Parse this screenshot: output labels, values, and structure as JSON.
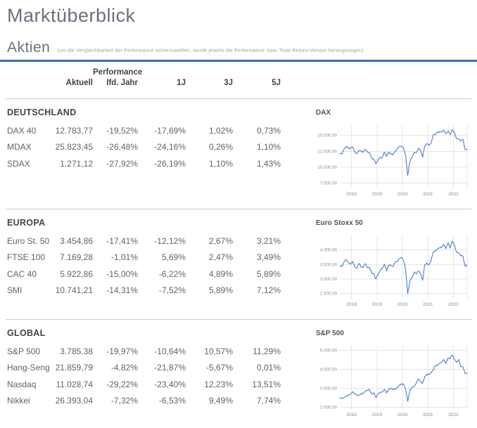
{
  "page": {
    "title": "Marktüberblick"
  },
  "section": {
    "title": "Aktien",
    "note": "(um die Vergleichbarkeit der Performance sicherzustellen, wurde jeweils die Performance- bzw. Total-Return-Version herangezogen)"
  },
  "table": {
    "group_header": "Performance",
    "columns": [
      "Aktuell",
      "lfd. Jahr",
      "1J",
      "3J",
      "5J"
    ],
    "groups": [
      {
        "name": "DEUTSCHLAND",
        "rows": [
          {
            "label": "DAX 40",
            "values": [
              "12.783,77",
              "-19,52%",
              "-17,69%",
              "1,02%",
              "0,73%"
            ]
          },
          {
            "label": "MDAX",
            "values": [
              "25.823,45",
              "-26,48%",
              "-24,16%",
              "0,26%",
              "1,10%"
            ]
          },
          {
            "label": "SDAX",
            "values": [
              "1.271,12",
              "-27,92%",
              "-26,19%",
              "1,10%",
              "1,43%"
            ]
          }
        ]
      },
      {
        "name": "EUROPA",
        "rows": [
          {
            "label": "Euro St. 50",
            "values": [
              "3.454,86",
              "-17,41%",
              "-12,12%",
              "2,67%",
              "3,21%"
            ]
          },
          {
            "label": "FTSE 100",
            "values": [
              "7.169,28",
              "-1,01%",
              "5,69%",
              "2,47%",
              "3,49%"
            ]
          },
          {
            "label": "CAC 40",
            "values": [
              "5.922,86",
              "-15,00%",
              "-6,22%",
              "4,89%",
              "5,89%"
            ]
          },
          {
            "label": "SMI",
            "values": [
              "10.741,21",
              "-14,31%",
              "-7,52%",
              "5,89%",
              "7,12%"
            ]
          }
        ]
      },
      {
        "name": "GLOBAL",
        "rows": [
          {
            "label": "S&P 500",
            "values": [
              "3.785,38",
              "-19,97%",
              "-10,64%",
              "10,57%",
              "11,29%"
            ]
          },
          {
            "label": "Hang-Seng",
            "values": [
              "21.859,79",
              "-4,82%",
              "-21,87%",
              "-5,67%",
              "0,01%"
            ]
          },
          {
            "label": "Nasdaq",
            "values": [
              "11.028,74",
              "-29,22%",
              "-23,40%",
              "12,23%",
              "13,51%"
            ]
          },
          {
            "label": "Nikkei",
            "values": [
              "26.393,04",
              "-7,32%",
              "-6,53%",
              "9,49%",
              "7,74%"
            ]
          }
        ]
      }
    ]
  },
  "colors": {
    "accent_rule": "#2e74b5",
    "chart_line": "#4a7dd3",
    "grid_line": "#e4e4e4",
    "divider": "#cccccc"
  },
  "chart_data": [
    {
      "type": "line",
      "title": "DAX",
      "x_range": [
        2017.54,
        2022.54
      ],
      "x_ticks": [
        2018,
        2019,
        2020,
        2021,
        2022
      ],
      "ylim": [
        6700,
        16600
      ],
      "y_ticks": [
        {
          "v": 15000,
          "label": "15.000,00"
        },
        {
          "v": 12500,
          "label": "12.500,00"
        },
        {
          "v": 10000,
          "label": "10.000,00"
        },
        {
          "v": 7500,
          "label": "7.500,00"
        }
      ],
      "values": [
        12118,
        12055,
        12829,
        13230,
        13024,
        12918,
        13190,
        12436,
        12097,
        12612,
        12604,
        12306,
        12806,
        12364,
        12247,
        11447,
        11257,
        10559,
        11173,
        11516,
        11526,
        12344,
        11727,
        12399,
        12189,
        11939,
        12428,
        12867,
        13236,
        13249,
        12982,
        11890,
        8742,
        10862,
        11587,
        12311,
        12313,
        12945,
        12761,
        11556,
        13291,
        13719,
        13433,
        13786,
        15008,
        15136,
        15421,
        15531,
        15544,
        15835,
        15261,
        15689,
        15100,
        15885,
        15471,
        14461,
        14415,
        14098,
        14388,
        12784,
        12813
      ]
    },
    {
      "type": "line",
      "title": "Euro Stoxx 50",
      "x_range": [
        2017.54,
        2022.54
      ],
      "x_ticks": [
        2018,
        2019,
        2020,
        2021,
        2022
      ],
      "ylim": [
        2320,
        4500
      ],
      "y_ticks": [
        {
          "v": 4000,
          "label": "4.000,00"
        },
        {
          "v": 3500,
          "label": "3.500,00"
        },
        {
          "v": 3000,
          "label": "3.000,00"
        },
        {
          "v": 2500,
          "label": "2.500,00"
        }
      ],
      "values": [
        3450,
        3421,
        3595,
        3674,
        3570,
        3504,
        3609,
        3439,
        3362,
        3537,
        3407,
        3396,
        3525,
        3393,
        3399,
        3198,
        3173,
        3001,
        3159,
        3298,
        3352,
        3515,
        3280,
        3474,
        3467,
        3427,
        3569,
        3604,
        3704,
        3745,
        3641,
        3329,
        2486,
        2928,
        3050,
        3234,
        3174,
        3273,
        3194,
        2958,
        3493,
        3553,
        3481,
        3636,
        3919,
        3974,
        4039,
        4064,
        4089,
        4196,
        4048,
        4251,
        4063,
        4298,
        4174,
        3924,
        3903,
        3803,
        3789,
        3455,
        3462
      ]
    },
    {
      "type": "line",
      "title": "S&P 500",
      "x_range": [
        2017.54,
        2022.54
      ],
      "x_ticks": [
        2018,
        2019,
        2020,
        2021,
        2022
      ],
      "ylim": [
        1900,
        5250
      ],
      "y_ticks": [
        {
          "v": 5000,
          "label": "5.000,00"
        },
        {
          "v": 4000,
          "label": "4.000,00"
        },
        {
          "v": 3000,
          "label": "3.000,00"
        },
        {
          "v": 2000,
          "label": "2.000,00"
        }
      ],
      "values": [
        2470,
        2472,
        2519,
        2575,
        2648,
        2674,
        2824,
        2714,
        2641,
        2648,
        2705,
        2718,
        2816,
        2902,
        2914,
        2712,
        2760,
        2507,
        2704,
        2784,
        2834,
        2946,
        2752,
        2942,
        2980,
        2926,
        2977,
        3038,
        3141,
        3231,
        3226,
        2954,
        2305,
        2912,
        3044,
        3100,
        3271,
        3500,
        3363,
        3270,
        3622,
        3756,
        3714,
        3811,
        3973,
        4181,
        4204,
        4298,
        4395,
        4523,
        4308,
        4605,
        4567,
        4766,
        4516,
        4374,
        4530,
        4132,
        4132,
        3785,
        3792
      ]
    }
  ]
}
